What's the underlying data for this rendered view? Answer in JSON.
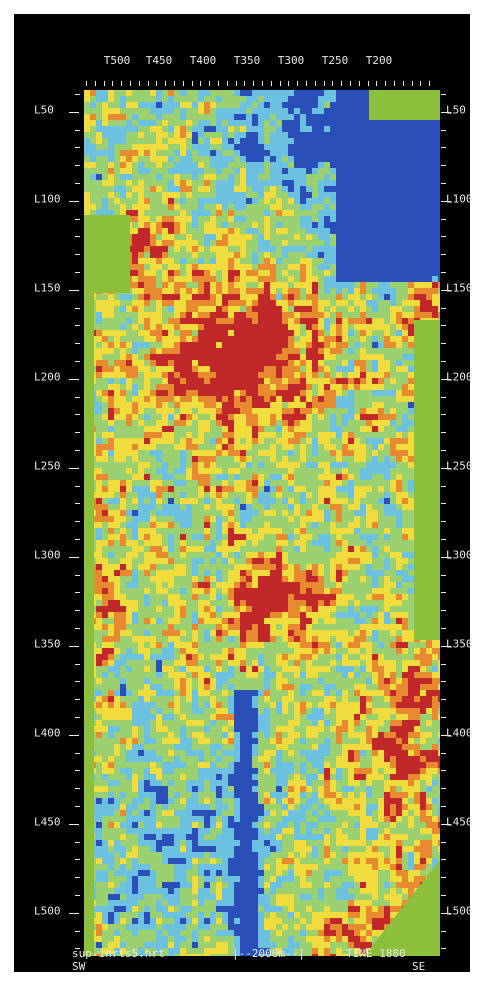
{
  "top_axis": {
    "labels": [
      "T500",
      "T450",
      "T400",
      "T350",
      "T300",
      "T250",
      "T200"
    ]
  },
  "side_axis": {
    "labels": [
      "L50",
      "L100",
      "L150",
      "L200",
      "L250",
      "L300",
      "L350",
      "L400",
      "L450",
      "L500"
    ]
  },
  "footer": {
    "filename": "sup-inrts5.hrt",
    "scale": "|--2000m--|",
    "time": "TIME 1880",
    "left_dir": "SW",
    "right_dir": "SE"
  },
  "colors": {
    "background": "#000000",
    "no_data": "#8cbf3c",
    "dark_blue": "#2a4fb8",
    "light_blue": "#6cc0e0",
    "green": "#9ad070",
    "yellow": "#f0dc3c",
    "orange": "#e88a30",
    "red": "#c0282a"
  }
}
